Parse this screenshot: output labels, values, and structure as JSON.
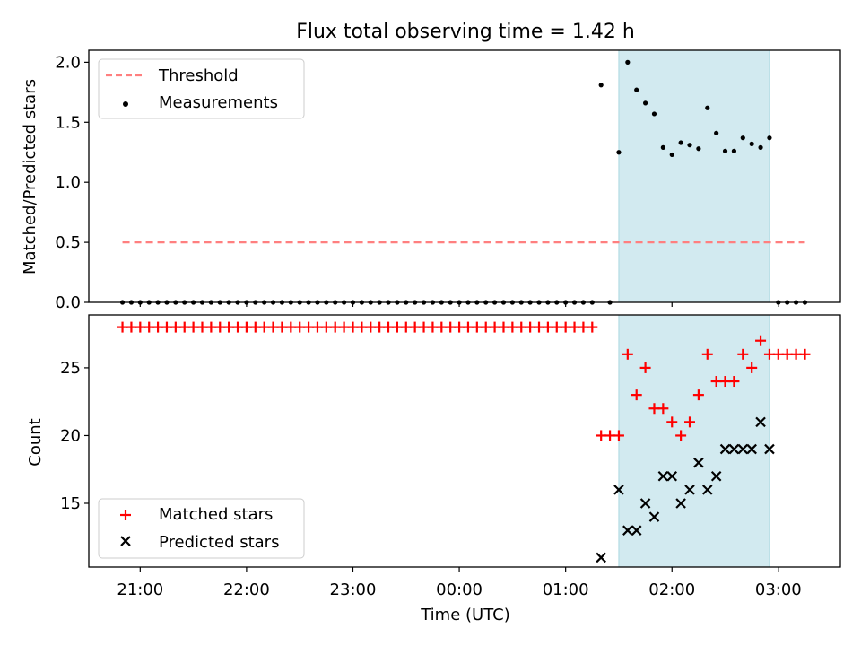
{
  "chart_data": {
    "type": "scatter",
    "title": "Flux total observing time = 1.42 h",
    "x_tick_labels": [
      "21:00",
      "22:00",
      "23:00",
      "00:00",
      "01:00",
      "02:00",
      "03:00"
    ],
    "xlabel": "Time (UTC)",
    "xlim": [
      "20:31",
      "03:35"
    ],
    "shaded_interval": [
      "01:30",
      "02:55"
    ],
    "colors": {
      "threshold": "#ff7f7f",
      "shade": "#d2eaf0",
      "matched": "#ff0000",
      "predicted": "#000000",
      "measurements": "#000000"
    },
    "panels": [
      {
        "name": "ratio",
        "ylabel": "Matched/Predicted stars",
        "ylim": [
          0,
          2.1
        ],
        "y_ticks": [
          "0.0",
          "0.5",
          "1.0",
          "1.5",
          "2.0"
        ],
        "legend_position": "upper left",
        "legend": [
          "Threshold",
          "Measurements"
        ],
        "threshold": {
          "value": 0.5,
          "x_start": "20:50",
          "x_end": "03:15"
        },
        "measurements_zero_times": [
          "20:50",
          "20:55",
          "21:00",
          "21:05",
          "21:10",
          "21:15",
          "21:20",
          "21:25",
          "21:30",
          "21:35",
          "21:40",
          "21:45",
          "21:50",
          "21:55",
          "22:00",
          "22:05",
          "22:10",
          "22:15",
          "22:20",
          "22:25",
          "22:30",
          "22:35",
          "22:40",
          "22:45",
          "22:50",
          "22:55",
          "23:00",
          "23:05",
          "23:10",
          "23:15",
          "23:20",
          "23:25",
          "23:30",
          "23:35",
          "23:40",
          "23:45",
          "23:50",
          "23:55",
          "00:00",
          "00:05",
          "00:10",
          "00:15",
          "00:20",
          "00:25",
          "00:30",
          "00:35",
          "00:40",
          "00:45",
          "00:50",
          "00:55",
          "01:00",
          "01:05",
          "01:10",
          "01:15",
          "01:25",
          "03:00",
          "03:05",
          "03:10",
          "03:15"
        ],
        "measurements": [
          [
            "01:20",
            1.81
          ],
          [
            "01:30",
            1.25
          ],
          [
            "01:35",
            2.0
          ],
          [
            "01:40",
            1.77
          ],
          [
            "01:45",
            1.66
          ],
          [
            "01:50",
            1.57
          ],
          [
            "01:55",
            1.29
          ],
          [
            "02:00",
            1.23
          ],
          [
            "02:05",
            1.33
          ],
          [
            "02:10",
            1.31
          ],
          [
            "02:15",
            1.28
          ],
          [
            "02:20",
            1.62
          ],
          [
            "02:25",
            1.41
          ],
          [
            "02:30",
            1.26
          ],
          [
            "02:35",
            1.26
          ],
          [
            "02:40",
            1.37
          ],
          [
            "02:45",
            1.32
          ],
          [
            "02:50",
            1.29
          ],
          [
            "02:55",
            1.37
          ]
        ]
      },
      {
        "name": "counts",
        "ylabel": "Count",
        "ylim": [
          10.3,
          28.9
        ],
        "y_ticks": [
          "15",
          "20",
          "25"
        ],
        "legend_position": "lower left",
        "legend": [
          "Matched stars",
          "Predicted stars"
        ],
        "matched_constant": {
          "value": 28,
          "from": "20:50",
          "to": "01:15"
        },
        "matched_stars": [
          [
            "01:20",
            20
          ],
          [
            "01:25",
            20
          ],
          [
            "01:30",
            20
          ],
          [
            "01:35",
            26
          ],
          [
            "01:40",
            23
          ],
          [
            "01:45",
            25
          ],
          [
            "01:50",
            22
          ],
          [
            "01:55",
            22
          ],
          [
            "02:00",
            21
          ],
          [
            "02:05",
            20
          ],
          [
            "02:10",
            21
          ],
          [
            "02:15",
            23
          ],
          [
            "02:20",
            26
          ],
          [
            "02:25",
            24
          ],
          [
            "02:30",
            24
          ],
          [
            "02:35",
            24
          ],
          [
            "02:40",
            26
          ],
          [
            "02:45",
            25
          ],
          [
            "02:50",
            27
          ],
          [
            "02:55",
            26
          ],
          [
            "03:00",
            26
          ],
          [
            "03:05",
            26
          ],
          [
            "03:10",
            26
          ],
          [
            "03:15",
            26
          ]
        ],
        "predicted_stars": [
          [
            "01:20",
            11
          ],
          [
            "01:30",
            16
          ],
          [
            "01:35",
            13
          ],
          [
            "01:40",
            13
          ],
          [
            "01:45",
            15
          ],
          [
            "01:50",
            14
          ],
          [
            "01:55",
            17
          ],
          [
            "02:00",
            17
          ],
          [
            "02:05",
            15
          ],
          [
            "02:10",
            16
          ],
          [
            "02:15",
            18
          ],
          [
            "02:20",
            16
          ],
          [
            "02:25",
            17
          ],
          [
            "02:30",
            19
          ],
          [
            "02:35",
            19
          ],
          [
            "02:40",
            19
          ],
          [
            "02:45",
            19
          ],
          [
            "02:50",
            21
          ],
          [
            "02:55",
            19
          ]
        ]
      }
    ]
  }
}
